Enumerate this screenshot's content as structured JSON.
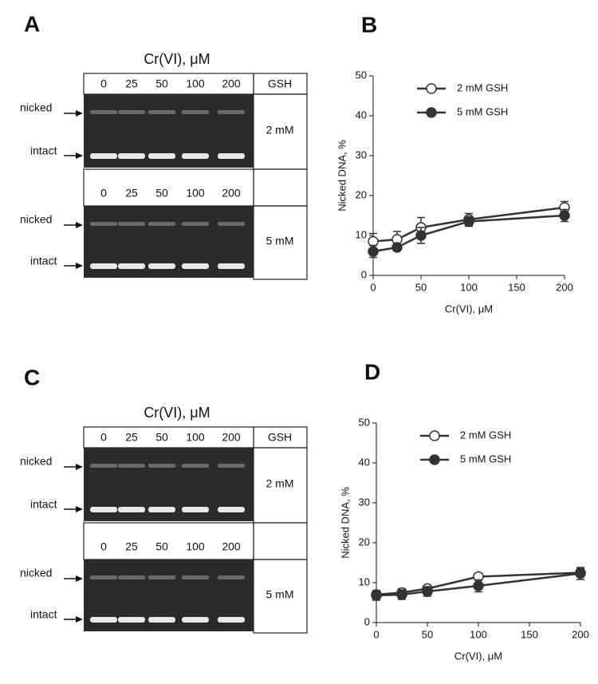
{
  "gels": [
    {
      "panel": "A",
      "header": "Cr(VI), μM",
      "gsh_label": "GSH",
      "lanes": [
        "0",
        "25",
        "50",
        "100",
        "200"
      ],
      "band_labels": [
        "nicked",
        "intact"
      ],
      "rows": [
        "2 mM",
        "5 mM"
      ]
    },
    {
      "panel": "C",
      "header": "Cr(VI), μM",
      "gsh_label": "GSH",
      "lanes": [
        "0",
        "25",
        "50",
        "100",
        "200"
      ],
      "band_labels": [
        "nicked",
        "intact"
      ],
      "rows": [
        "2 mM",
        "5 mM"
      ]
    }
  ],
  "chart_data": [
    {
      "type": "line",
      "panel": "B",
      "xlabel": "Cr(VI), μM",
      "ylabel": "Nicked DNA, %",
      "x": [
        0,
        25,
        50,
        100,
        200
      ],
      "xlim": [
        0,
        200
      ],
      "xticks": [
        0,
        50,
        100,
        150,
        200
      ],
      "ylim": [
        0,
        50
      ],
      "yticks": [
        0,
        10,
        20,
        30,
        40,
        50
      ],
      "series": [
        {
          "name": "2 mM GSH",
          "color": "#333333",
          "marker": "open",
          "values": [
            8.5,
            9,
            12,
            14,
            17
          ],
          "errors": [
            2,
            2,
            2.5,
            1.5,
            1.5
          ]
        },
        {
          "name": "5 mM GSH",
          "color": "#333333",
          "marker": "filled",
          "values": [
            6,
            7,
            10,
            13.5,
            15
          ],
          "errors": [
            1.5,
            0.8,
            2,
            1.2,
            1.5
          ]
        }
      ]
    },
    {
      "type": "line",
      "panel": "D",
      "xlabel": "Cr(VI), μM",
      "ylabel": "Nicked DNA, %",
      "x": [
        0,
        25,
        50,
        100,
        200
      ],
      "xlim": [
        0,
        200
      ],
      "xticks": [
        0,
        50,
        100,
        150,
        200
      ],
      "ylim": [
        0,
        50
      ],
      "yticks": [
        0,
        10,
        20,
        30,
        40,
        50
      ],
      "series": [
        {
          "name": "2 mM GSH",
          "color": "#333333",
          "marker": "open",
          "values": [
            7,
            7.5,
            8.5,
            11.5,
            12.5
          ],
          "errors": [
            1,
            1,
            0.8,
            0.5,
            1
          ]
        },
        {
          "name": "5 mM GSH",
          "color": "#333333",
          "marker": "filled",
          "values": [
            6.8,
            7,
            7.8,
            9.2,
            12.3
          ],
          "errors": [
            1.2,
            1.2,
            1.2,
            1.5,
            1.5
          ]
        }
      ]
    }
  ]
}
